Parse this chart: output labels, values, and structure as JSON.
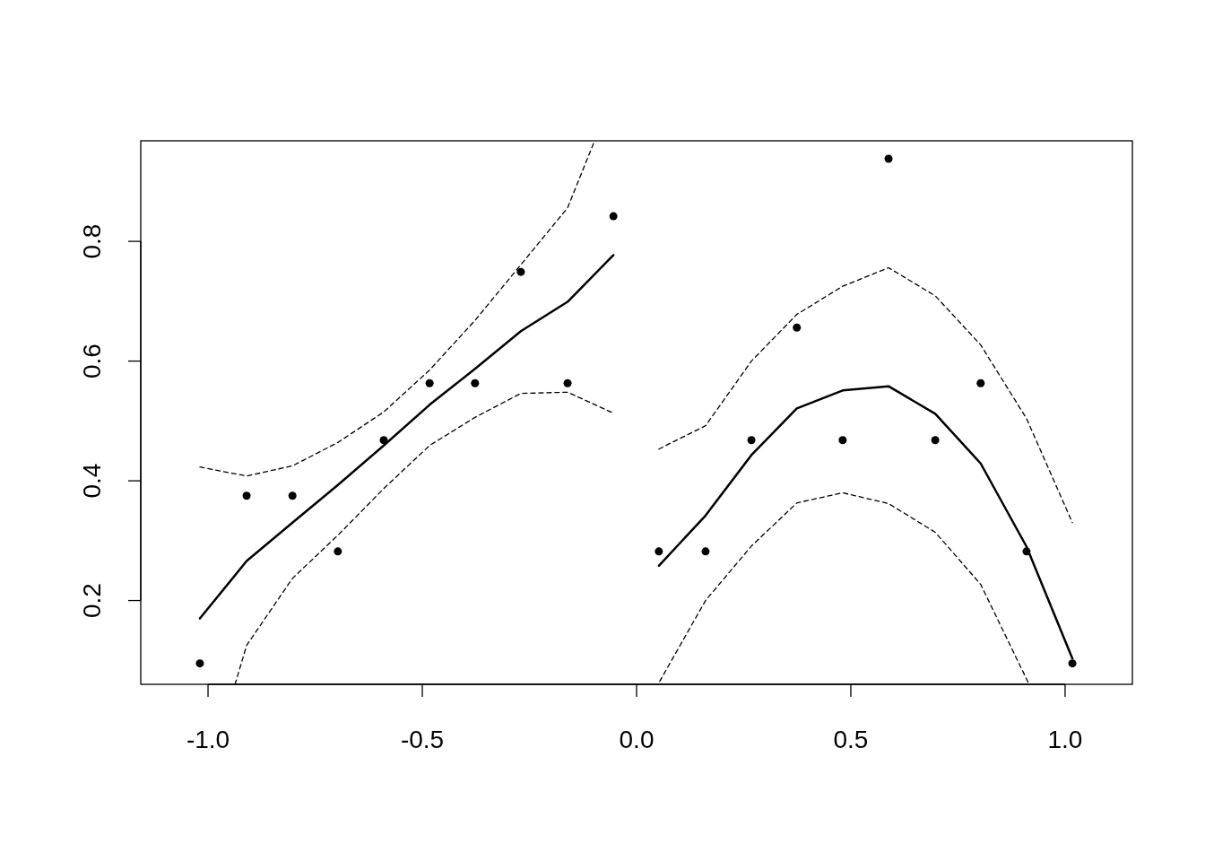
{
  "chart_data": {
    "type": "scatter",
    "xlim": [
      -1.157,
      1.157
    ],
    "ylim": [
      0.06,
      0.968
    ],
    "xticks": [
      {
        "value": -1,
        "label": "-1.0"
      },
      {
        "value": -0.5,
        "label": "-0.5"
      },
      {
        "value": 0,
        "label": "0.0"
      },
      {
        "value": 0.5,
        "label": "0.5"
      },
      {
        "value": 1,
        "label": "1.0"
      }
    ],
    "yticks": [
      0.2,
      0.4,
      0.6,
      0.8
    ],
    "grid": false,
    "series": [
      {
        "color": "#000000",
        "marker": "circle",
        "x": [
          -1.019,
          -0.91,
          -0.803,
          -0.697,
          -0.59,
          -0.483,
          -0.377,
          -0.27,
          -0.161,
          -0.054
        ],
        "values": [
          0.095,
          0.375,
          0.375,
          0.282,
          0.468,
          0.563,
          0.563,
          0.749,
          0.563,
          0.842
        ]
      },
      {
        "color": "#000000",
        "marker": "circle",
        "x": [
          0.052,
          0.161,
          0.268,
          0.374,
          0.481,
          0.588,
          0.697,
          0.803,
          0.91,
          1.017
        ],
        "values": [
          0.282,
          0.282,
          0.468,
          0.656,
          0.468,
          0.938,
          0.468,
          0.563,
          0.282,
          0.095
        ]
      },
      {
        "type": "line",
        "color": "#000000",
        "line_style": "solid",
        "x": [
          -1.019,
          -0.91,
          -0.803,
          -0.697,
          -0.59,
          -0.483,
          -0.377,
          -0.27,
          -0.161,
          -0.054
        ],
        "values": [
          0.17,
          0.266,
          0.33,
          0.393,
          0.459,
          0.527,
          0.587,
          0.65,
          0.699,
          0.777
        ]
      },
      {
        "type": "line",
        "color": "#000000",
        "line_style": "dashed",
        "x": [
          -1.019,
          -0.91,
          -0.803,
          -0.697,
          -0.59,
          -0.483,
          -0.377,
          -0.27,
          -0.161,
          -0.098
        ],
        "values": [
          0.423,
          0.408,
          0.425,
          0.464,
          0.515,
          0.585,
          0.668,
          0.761,
          0.856,
          0.968
        ]
      },
      {
        "type": "line",
        "color": "#000000",
        "line_style": "dashed",
        "x": [
          -0.937,
          -0.91,
          -0.803,
          -0.697,
          -0.59,
          -0.483,
          -0.377,
          -0.27,
          -0.161,
          -0.054
        ],
        "values": [
          0.06,
          0.125,
          0.237,
          0.309,
          0.387,
          0.459,
          0.506,
          0.546,
          0.548,
          0.513
        ]
      },
      {
        "type": "line",
        "color": "#000000",
        "line_style": "solid",
        "x": [
          0.052,
          0.161,
          0.268,
          0.374,
          0.481,
          0.588,
          0.697,
          0.803,
          0.91,
          1.017
        ],
        "values": [
          0.258,
          0.342,
          0.443,
          0.521,
          0.551,
          0.558,
          0.512,
          0.429,
          0.29,
          0.103
        ]
      },
      {
        "type": "line",
        "color": "#000000",
        "line_style": "dashed",
        "x": [
          0.052,
          0.161,
          0.268,
          0.374,
          0.481,
          0.588,
          0.697,
          0.803,
          0.91,
          1.017
        ],
        "values": [
          0.453,
          0.492,
          0.6,
          0.678,
          0.725,
          0.756,
          0.709,
          0.627,
          0.504,
          0.33
        ]
      },
      {
        "type": "line",
        "color": "#000000",
        "line_style": "dashed",
        "x": [
          0.054,
          0.161,
          0.268,
          0.374,
          0.481,
          0.588,
          0.697,
          0.803,
          0.916
        ],
        "values": [
          0.065,
          0.2,
          0.291,
          0.363,
          0.38,
          0.362,
          0.314,
          0.227,
          0.06
        ]
      }
    ]
  }
}
